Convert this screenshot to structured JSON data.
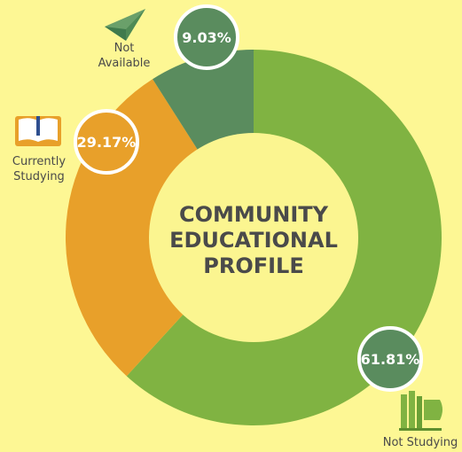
{
  "chart_data": {
    "type": "pie",
    "title_lines": [
      "COMMUNITY",
      "EDUCATIONAL",
      "PROFILE"
    ],
    "slices": [
      {
        "name": "Not Studying",
        "value": 61.81,
        "label": "61.81%",
        "color": "#80b342",
        "icon": "books-icon"
      },
      {
        "name": "Currently Studying",
        "value": 29.17,
        "label": "29.17%",
        "color": "#e8a02a",
        "icon": "open-book-icon"
      },
      {
        "name": "Not Available",
        "value": 9.03,
        "label": "9.03%",
        "color": "#5a8c5e",
        "icon": "paper-plane-icon"
      }
    ]
  },
  "category_labels": {
    "not_studying": "Not Studying",
    "currently_studying_line1": "Currently",
    "currently_studying_line2": "Studying",
    "not_available_line1": "Not",
    "not_available_line2": "Available"
  },
  "colors": {
    "background": "#fdf794",
    "center": "#fbf590",
    "title_text": "#4a4a4a",
    "label_text": "#4a4a4a"
  }
}
